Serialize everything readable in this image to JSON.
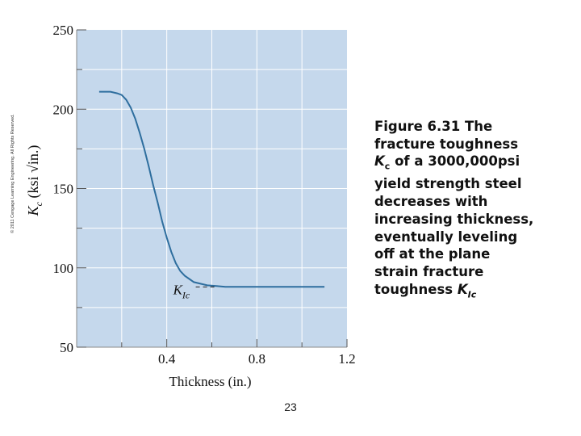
{
  "copyright": "© 2011 Cengage Learning Engineering. All Rights Reserved.",
  "caption": {
    "line1": "Figure 6.31  The",
    "line2": "fracture toughness",
    "line3_var": "K",
    "line3_sub": "c",
    "line3_rest": " of a 3000,000psi",
    "line4": "yield strength steel",
    "line5": "decreases with",
    "line6": "increasing thickness,",
    "line7": "eventually leveling",
    "line8": "off at the plane",
    "line9": "strain fracture",
    "line10_text": "toughness ",
    "line10_var": "K",
    "line10_sub": "Ic"
  },
  "page_number": "23",
  "colors": {
    "plot_bg": "#c5d8ec",
    "curve": "#2e6e9e",
    "grid": "#ffffff",
    "text": "#111111"
  },
  "chart_data": {
    "type": "line",
    "xlabel": "Thickness (in.)",
    "ylabel_var": "K",
    "ylabel_sub": "c",
    "ylabel_units": "(ksi √in.)",
    "xlim": [
      0,
      1.2
    ],
    "ylim": [
      50,
      250
    ],
    "xticks": [
      0.4,
      0.8,
      1.2
    ],
    "xtick_labels": [
      "0.4",
      "0.8",
      "1.2"
    ],
    "xminor": [
      0.2,
      0.6,
      1.0
    ],
    "yticks": [
      50,
      100,
      150,
      200,
      250
    ],
    "ytick_labels": [
      "50",
      "100",
      "150",
      "200",
      "250"
    ],
    "yminor": [
      75,
      125,
      175,
      225
    ],
    "grid": true,
    "annotation": {
      "var": "K",
      "sub": "Ic",
      "x": 0.5,
      "y": 88
    },
    "series": [
      {
        "x": [
          0.1,
          0.15,
          0.18,
          0.2,
          0.22,
          0.24,
          0.26,
          0.28,
          0.3,
          0.32,
          0.34,
          0.36,
          0.38,
          0.4,
          0.42,
          0.44,
          0.46,
          0.48,
          0.5,
          0.52,
          0.55,
          0.58,
          0.62,
          0.66,
          0.7,
          0.75,
          0.8,
          0.9,
          1.0,
          1.1
        ],
        "y": [
          211,
          211,
          210,
          209,
          206,
          201,
          194,
          185,
          175,
          164,
          152,
          141,
          129,
          119,
          110,
          103,
          98,
          95,
          93,
          91,
          90,
          89,
          88.5,
          88,
          88,
          88,
          88,
          88,
          88,
          88
        ]
      }
    ]
  }
}
